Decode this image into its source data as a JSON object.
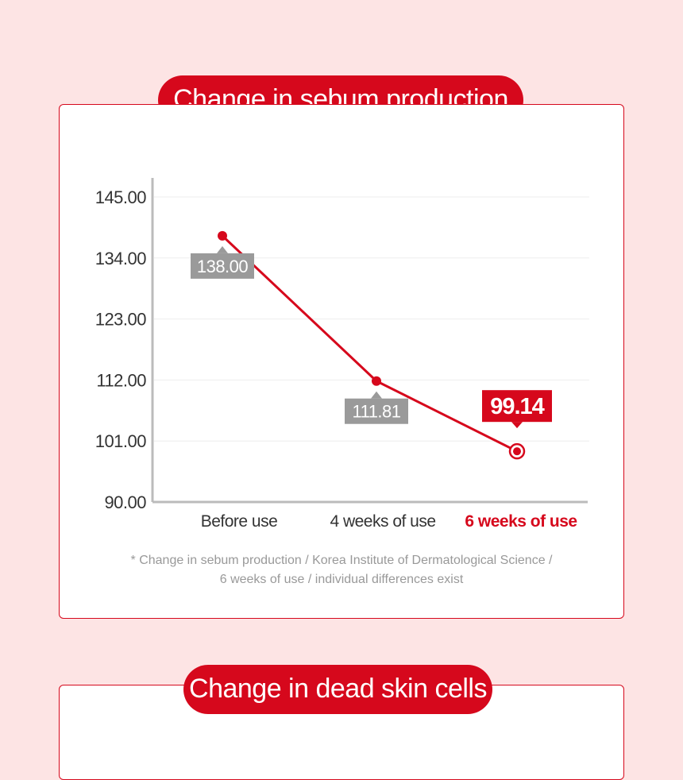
{
  "colors": {
    "background": "#fde4e4",
    "accent": "#d6081c",
    "label_gray": "#9a9a9a",
    "axis": "#bbbbbb",
    "grid": "#eeeeee"
  },
  "section1": {
    "title": "Change in sebum production",
    "footnote_line1": "* Change in sebum production / Korea Institute of Dermatological Science /",
    "footnote_line2": "6 weeks of use / individual differences exist"
  },
  "section2": {
    "title": "Change in dead skin cells"
  },
  "chart_data": {
    "type": "line",
    "title": "Change in sebum production",
    "xlabel": "",
    "ylabel": "",
    "categories": [
      "Before use",
      "4 weeks of use",
      "6 weeks of use"
    ],
    "series": [
      {
        "values": [
          138.0,
          111.81,
          99.14
        ]
      }
    ],
    "value_labels": [
      "138.00",
      "111.81",
      "99.14"
    ],
    "highlight_index": 2,
    "y_ticks": [
      "145.00",
      "134.00",
      "123.00",
      "112.00",
      "101.00",
      "90.00"
    ],
    "ylim": [
      90,
      145
    ],
    "grid": true,
    "legend": "none"
  }
}
